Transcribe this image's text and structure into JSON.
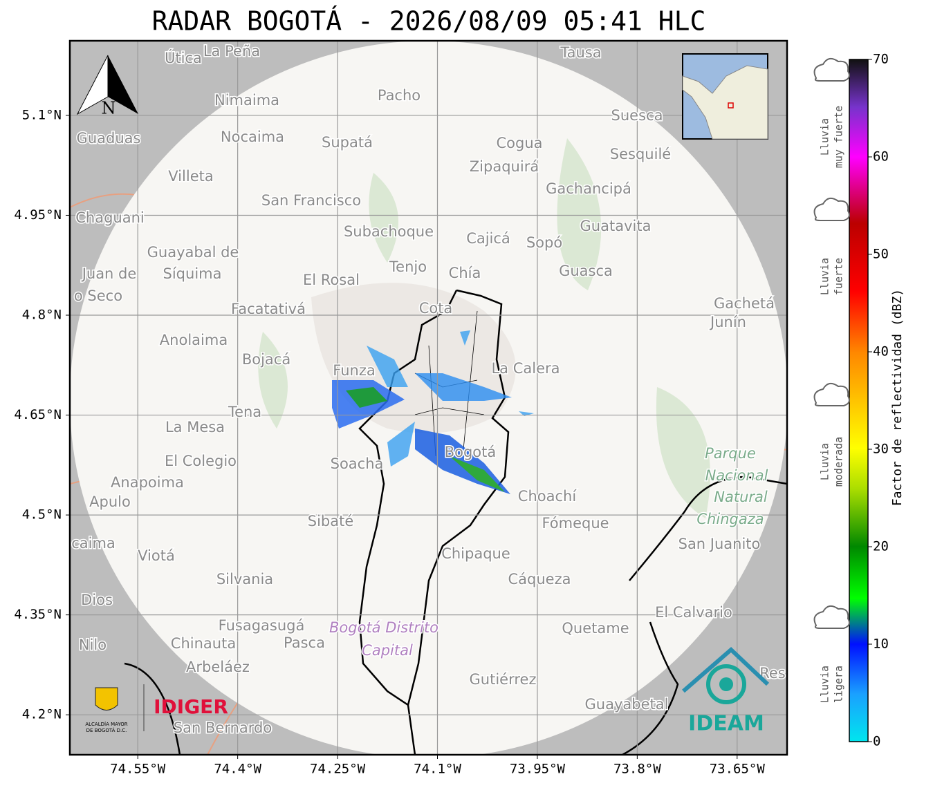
{
  "title": "RADAR BOGOTÁ - 2026/08/09 05:41 HLC",
  "map": {
    "xlim": [
      -74.652,
      -73.575
    ],
    "ylim": [
      4.14,
      5.212
    ],
    "grid": true,
    "xticks": [
      {
        "value": -74.55,
        "label": "74.55°W"
      },
      {
        "value": -74.4,
        "label": "74.4°W"
      },
      {
        "value": -74.25,
        "label": "74.25°W"
      },
      {
        "value": -74.1,
        "label": "74.1°W"
      },
      {
        "value": -73.95,
        "label": "73.95°W"
      },
      {
        "value": -73.8,
        "label": "73.8°W"
      },
      {
        "value": -73.65,
        "label": "73.65°W"
      }
    ],
    "yticks": [
      {
        "value": 5.1,
        "label": "5.1°N"
      },
      {
        "value": 4.95,
        "label": "4.95°N"
      },
      {
        "value": 4.8,
        "label": "4.8°N"
      },
      {
        "value": 4.65,
        "label": "4.65°N"
      },
      {
        "value": 4.5,
        "label": "4.5°N"
      },
      {
        "value": 4.35,
        "label": "4.35°N"
      },
      {
        "value": 4.2,
        "label": "4.2°N"
      }
    ],
    "north_label": "N",
    "places": [
      "Útica",
      "La Peña",
      "Tausa",
      "Pacho",
      "Nimaima",
      "Suesca",
      "Guaduas",
      "Nocaima",
      "Supatá",
      "Cogua",
      "Sesquilé",
      "Zipaquirá",
      "Villeta",
      "Gachancipá",
      "San Francisco",
      "Chaguani",
      "Guatavita",
      "Subachoque",
      "Cajicá",
      "Sopó",
      "Guayabal de",
      "Tenjo",
      "Guasca",
      "Chía",
      "Juan de",
      "Síquima",
      "El Rosal",
      "o Seco",
      "Cota",
      "Gachetá",
      "Junín",
      "Facatativá",
      "Anolaima",
      "Bojacá",
      "La Calera",
      "Funza",
      "Tena",
      "La Mesa",
      "Soacha",
      "El Colegio",
      "Bogotá",
      "Parque",
      "Nacional",
      "Natural",
      "Chingaza",
      "Anapoima",
      "Choachí",
      "Apulo",
      "Sibaté",
      "Fómeque",
      "San Juanito",
      "caima",
      "Viotá",
      "Chipaque",
      "Silvania",
      "Cáqueza",
      "Dios",
      "El Calvario",
      "Fusagasugá",
      "Bogotá Distrito",
      "Quetame",
      "Nilo",
      "Chinauta",
      "Pasca",
      "Capital",
      "Arbeláez",
      "Gutiérrez",
      "Res",
      "Guayabetal",
      "San Bernardo"
    ]
  },
  "colorbar": {
    "label": "Factor de reflectividad (dBZ)",
    "lim": [
      0,
      70
    ],
    "ticks": [
      0,
      10,
      20,
      30,
      40,
      50,
      60,
      70
    ],
    "categories": [
      [
        "Lluvia",
        "muy fuerte"
      ],
      [
        "Lluvia",
        "fuerte"
      ],
      [
        "Lluvia",
        "moderada"
      ],
      [
        "Lluvia",
        "ligera"
      ]
    ]
  },
  "logos": {
    "bogota": [
      "ALCALDÍA MAYOR",
      "DE BOGOTÁ D.C."
    ],
    "idiger": "IDIGER",
    "ideam": "IDEAM"
  }
}
